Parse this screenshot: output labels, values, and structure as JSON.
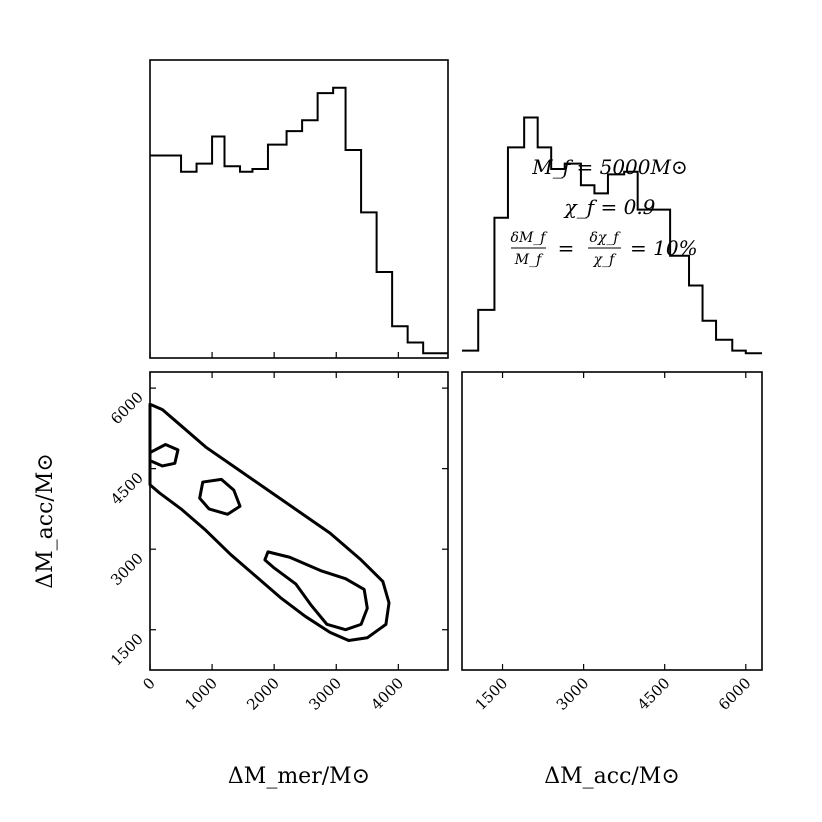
{
  "chart_data": [
    {
      "type": "histogram",
      "panel": "top-left",
      "variable": "ΔM_mer/M⊙",
      "xlim": [
        0,
        4800
      ],
      "bin_edges": [
        0,
        300,
        500,
        750,
        1000,
        1200,
        1450,
        1650,
        1900,
        2200,
        2450,
        2700,
        2950,
        3150,
        3400,
        3650,
        3900,
        4150,
        4400,
        4800
      ],
      "values": [
        0.74,
        0.74,
        0.68,
        0.71,
        0.81,
        0.7,
        0.68,
        0.69,
        0.78,
        0.83,
        0.87,
        0.97,
        0.99,
        0.76,
        0.53,
        0.31,
        0.11,
        0.05,
        0.01
      ]
    },
    {
      "type": "contour",
      "panel": "bottom-left",
      "xlabel": "ΔM_mer/M⊙",
      "ylabel": "ΔM_acc/M⊙",
      "xlim": [
        0,
        4800
      ],
      "ylim": [
        750,
        6300
      ],
      "xticks": [
        0,
        1000,
        2000,
        3000,
        4000
      ],
      "yticks": [
        1500,
        3000,
        4500,
        6000
      ],
      "contours": [
        {
          "level": "outer",
          "points": [
            [
              0,
              5700
            ],
            [
              200,
              5600
            ],
            [
              500,
              5300
            ],
            [
              900,
              4900
            ],
            [
              1400,
              4500
            ],
            [
              1900,
              4100
            ],
            [
              2400,
              3700
            ],
            [
              2900,
              3300
            ],
            [
              3400,
              2800
            ],
            [
              3750,
              2400
            ],
            [
              3850,
              2000
            ],
            [
              3800,
              1600
            ],
            [
              3500,
              1350
            ],
            [
              3200,
              1300
            ],
            [
              2900,
              1450
            ],
            [
              2500,
              1750
            ],
            [
              2100,
              2100
            ],
            [
              1700,
              2500
            ],
            [
              1300,
              2900
            ],
            [
              900,
              3350
            ],
            [
              500,
              3750
            ],
            [
              150,
              4050
            ],
            [
              0,
              4200
            ]
          ]
        },
        {
          "level": "inner-a",
          "points": [
            [
              0,
              4800
            ],
            [
              250,
              4950
            ],
            [
              450,
              4850
            ],
            [
              400,
              4600
            ],
            [
              200,
              4550
            ],
            [
              0,
              4650
            ]
          ]
        },
        {
          "level": "inner-b",
          "points": [
            [
              850,
              4250
            ],
            [
              1150,
              4300
            ],
            [
              1350,
              4100
            ],
            [
              1450,
              3800
            ],
            [
              1250,
              3650
            ],
            [
              950,
              3750
            ],
            [
              800,
              3950
            ]
          ]
        },
        {
          "level": "inner-c",
          "points": [
            [
              1900,
              2950
            ],
            [
              2250,
              2850
            ],
            [
              2750,
              2600
            ],
            [
              3150,
              2450
            ],
            [
              3450,
              2250
            ],
            [
              3500,
              1900
            ],
            [
              3400,
              1600
            ],
            [
              3150,
              1500
            ],
            [
              2850,
              1600
            ],
            [
              2600,
              1950
            ],
            [
              2350,
              2350
            ],
            [
              2000,
              2650
            ],
            [
              1850,
              2800
            ]
          ]
        }
      ]
    },
    {
      "type": "histogram",
      "panel": "bottom-right",
      "variable": "ΔM_acc/M⊙",
      "xlabel": "ΔM_acc/M⊙",
      "xlim": [
        750,
        6300
      ],
      "xticks": [
        1500,
        3000,
        4500,
        6000
      ],
      "bin_edges": [
        750,
        1050,
        1350,
        1600,
        1900,
        2150,
        2400,
        2650,
        2950,
        3200,
        3450,
        3750,
        4000,
        4300,
        4600,
        4950,
        5200,
        5450,
        5750,
        6000,
        6300
      ],
      "values": [
        0.02,
        0.17,
        0.51,
        0.77,
        0.88,
        0.77,
        0.69,
        0.71,
        0.63,
        0.6,
        0.67,
        0.68,
        0.54,
        0.54,
        0.37,
        0.26,
        0.13,
        0.06,
        0.02,
        0.01
      ]
    }
  ],
  "annotation": {
    "line1": "M_f = 5000M⊙",
    "line2": "χ_f = 0.9",
    "line3_left_num": "δM_f",
    "line3_left_den": "M_f",
    "line3_mid_num": "δχ_f",
    "line3_mid_den": "χ_f",
    "line3_tail": "= 10%",
    "eq": "="
  },
  "labels": {
    "x_bottom_left": "ΔM_mer/M⊙",
    "x_bottom_right": "ΔM_acc/M⊙",
    "y_bottom_left": "ΔM_acc/M⊙"
  },
  "tick_labels": {
    "x_left": [
      "0",
      "1000",
      "2000",
      "3000",
      "4000"
    ],
    "y_left": [
      "1500",
      "3000",
      "4500",
      "6000"
    ],
    "x_right": [
      "1500",
      "3000",
      "4500",
      "6000"
    ]
  }
}
